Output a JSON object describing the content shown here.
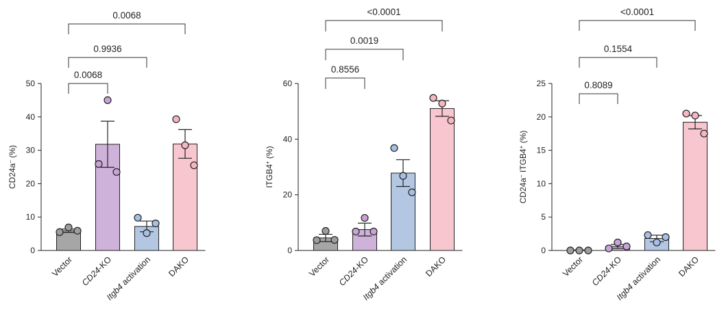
{
  "chart_data": [
    {
      "type": "bar",
      "ylabel_main": "CD24a",
      "ylabel_sup": "−",
      "ylabel_unit": " (%)",
      "ylim": [
        0,
        50
      ],
      "yticks": [
        0,
        10,
        20,
        30,
        40,
        50
      ],
      "categories": [
        {
          "label": "Vector",
          "italic": false
        },
        {
          "label": "CD24",
          "italic": true,
          "suffix": "-KO"
        },
        {
          "label": "Itgb4",
          "italic": true,
          "suffix": " activation"
        },
        {
          "label": "DAKO",
          "italic": false
        }
      ],
      "means": [
        5.9,
        31.8,
        7.2,
        31.9
      ],
      "sem": [
        0.5,
        6.9,
        1.6,
        4.3
      ],
      "points": [
        [
          5.5,
          6.9,
          5.9
        ],
        [
          25.9,
          45.0,
          23.5
        ],
        [
          9.8,
          5.2,
          8.1
        ],
        [
          39.3,
          31.5,
          25.5
        ]
      ],
      "comparisons": [
        {
          "from": 0,
          "to": 1,
          "p": "0.0068"
        },
        {
          "from": 0,
          "to": 2,
          "p": "0.9936"
        },
        {
          "from": 0,
          "to": 3,
          "p": "0.0068"
        }
      ]
    },
    {
      "type": "bar",
      "ylabel_main": "ITGB4",
      "ylabel_sup": "+",
      "ylabel_unit": " (%)",
      "ylim": [
        0,
        60
      ],
      "yticks": [
        0,
        20,
        40,
        60
      ],
      "categories": [
        {
          "label": "Vector",
          "italic": false
        },
        {
          "label": "CD24",
          "italic": true,
          "suffix": "-KO"
        },
        {
          "label": "Itgb4",
          "italic": true,
          "suffix": " activation"
        },
        {
          "label": "DAKO",
          "italic": false
        }
      ],
      "means": [
        4.5,
        7.5,
        27.8,
        51.0
      ],
      "sem": [
        1.3,
        2.3,
        4.8,
        2.8
      ],
      "points": [
        [
          3.7,
          7.0,
          3.8
        ],
        [
          6.8,
          11.7,
          6.8
        ],
        [
          36.8,
          26.8,
          20.9
        ],
        [
          54.8,
          52.8,
          46.7
        ]
      ],
      "comparisons": [
        {
          "from": 0,
          "to": 1,
          "p": "0.8556"
        },
        {
          "from": 0,
          "to": 2,
          "p": "0.0019"
        },
        {
          "from": 0,
          "to": 3,
          "p": "<0.0001"
        }
      ]
    },
    {
      "type": "bar",
      "ylabel_main": "CD24a",
      "ylabel_sup": "−",
      "ylabel_mid": " ITGB4",
      "ylabel_sup2": "+",
      "ylabel_unit": " (%)",
      "ylim": [
        0,
        25
      ],
      "yticks": [
        0,
        5,
        10,
        15,
        20,
        25
      ],
      "categories": [
        {
          "label": "Vector",
          "italic": false
        },
        {
          "label": "CD24",
          "italic": true,
          "suffix": "-KO"
        },
        {
          "label": "Itgb4",
          "italic": true,
          "suffix": " activation"
        },
        {
          "label": "DAKO",
          "italic": false
        }
      ],
      "means": [
        0.05,
        0.6,
        1.8,
        19.2
      ],
      "sem": [
        0.03,
        0.3,
        0.5,
        1.0
      ],
      "points": [
        [
          0.0,
          0.0,
          0.0
        ],
        [
          0.3,
          1.2,
          0.6
        ],
        [
          2.3,
          1.2,
          2.0
        ],
        [
          20.5,
          20.2,
          17.5
        ]
      ],
      "comparisons": [
        {
          "from": 0,
          "to": 1,
          "p": "0.8089"
        },
        {
          "from": 0,
          "to": 2,
          "p": "0.1554"
        },
        {
          "from": 0,
          "to": 3,
          "p": "<0.0001"
        }
      ]
    }
  ],
  "colors": {
    "bars": [
      "#a6a6a6",
      "#cfb2d9",
      "#b3c7e3",
      "#f7c6ce"
    ],
    "dots": [
      "#9d9d9d",
      "#c8a3d4",
      "#a7bfe2",
      "#f5b7c1"
    ]
  }
}
